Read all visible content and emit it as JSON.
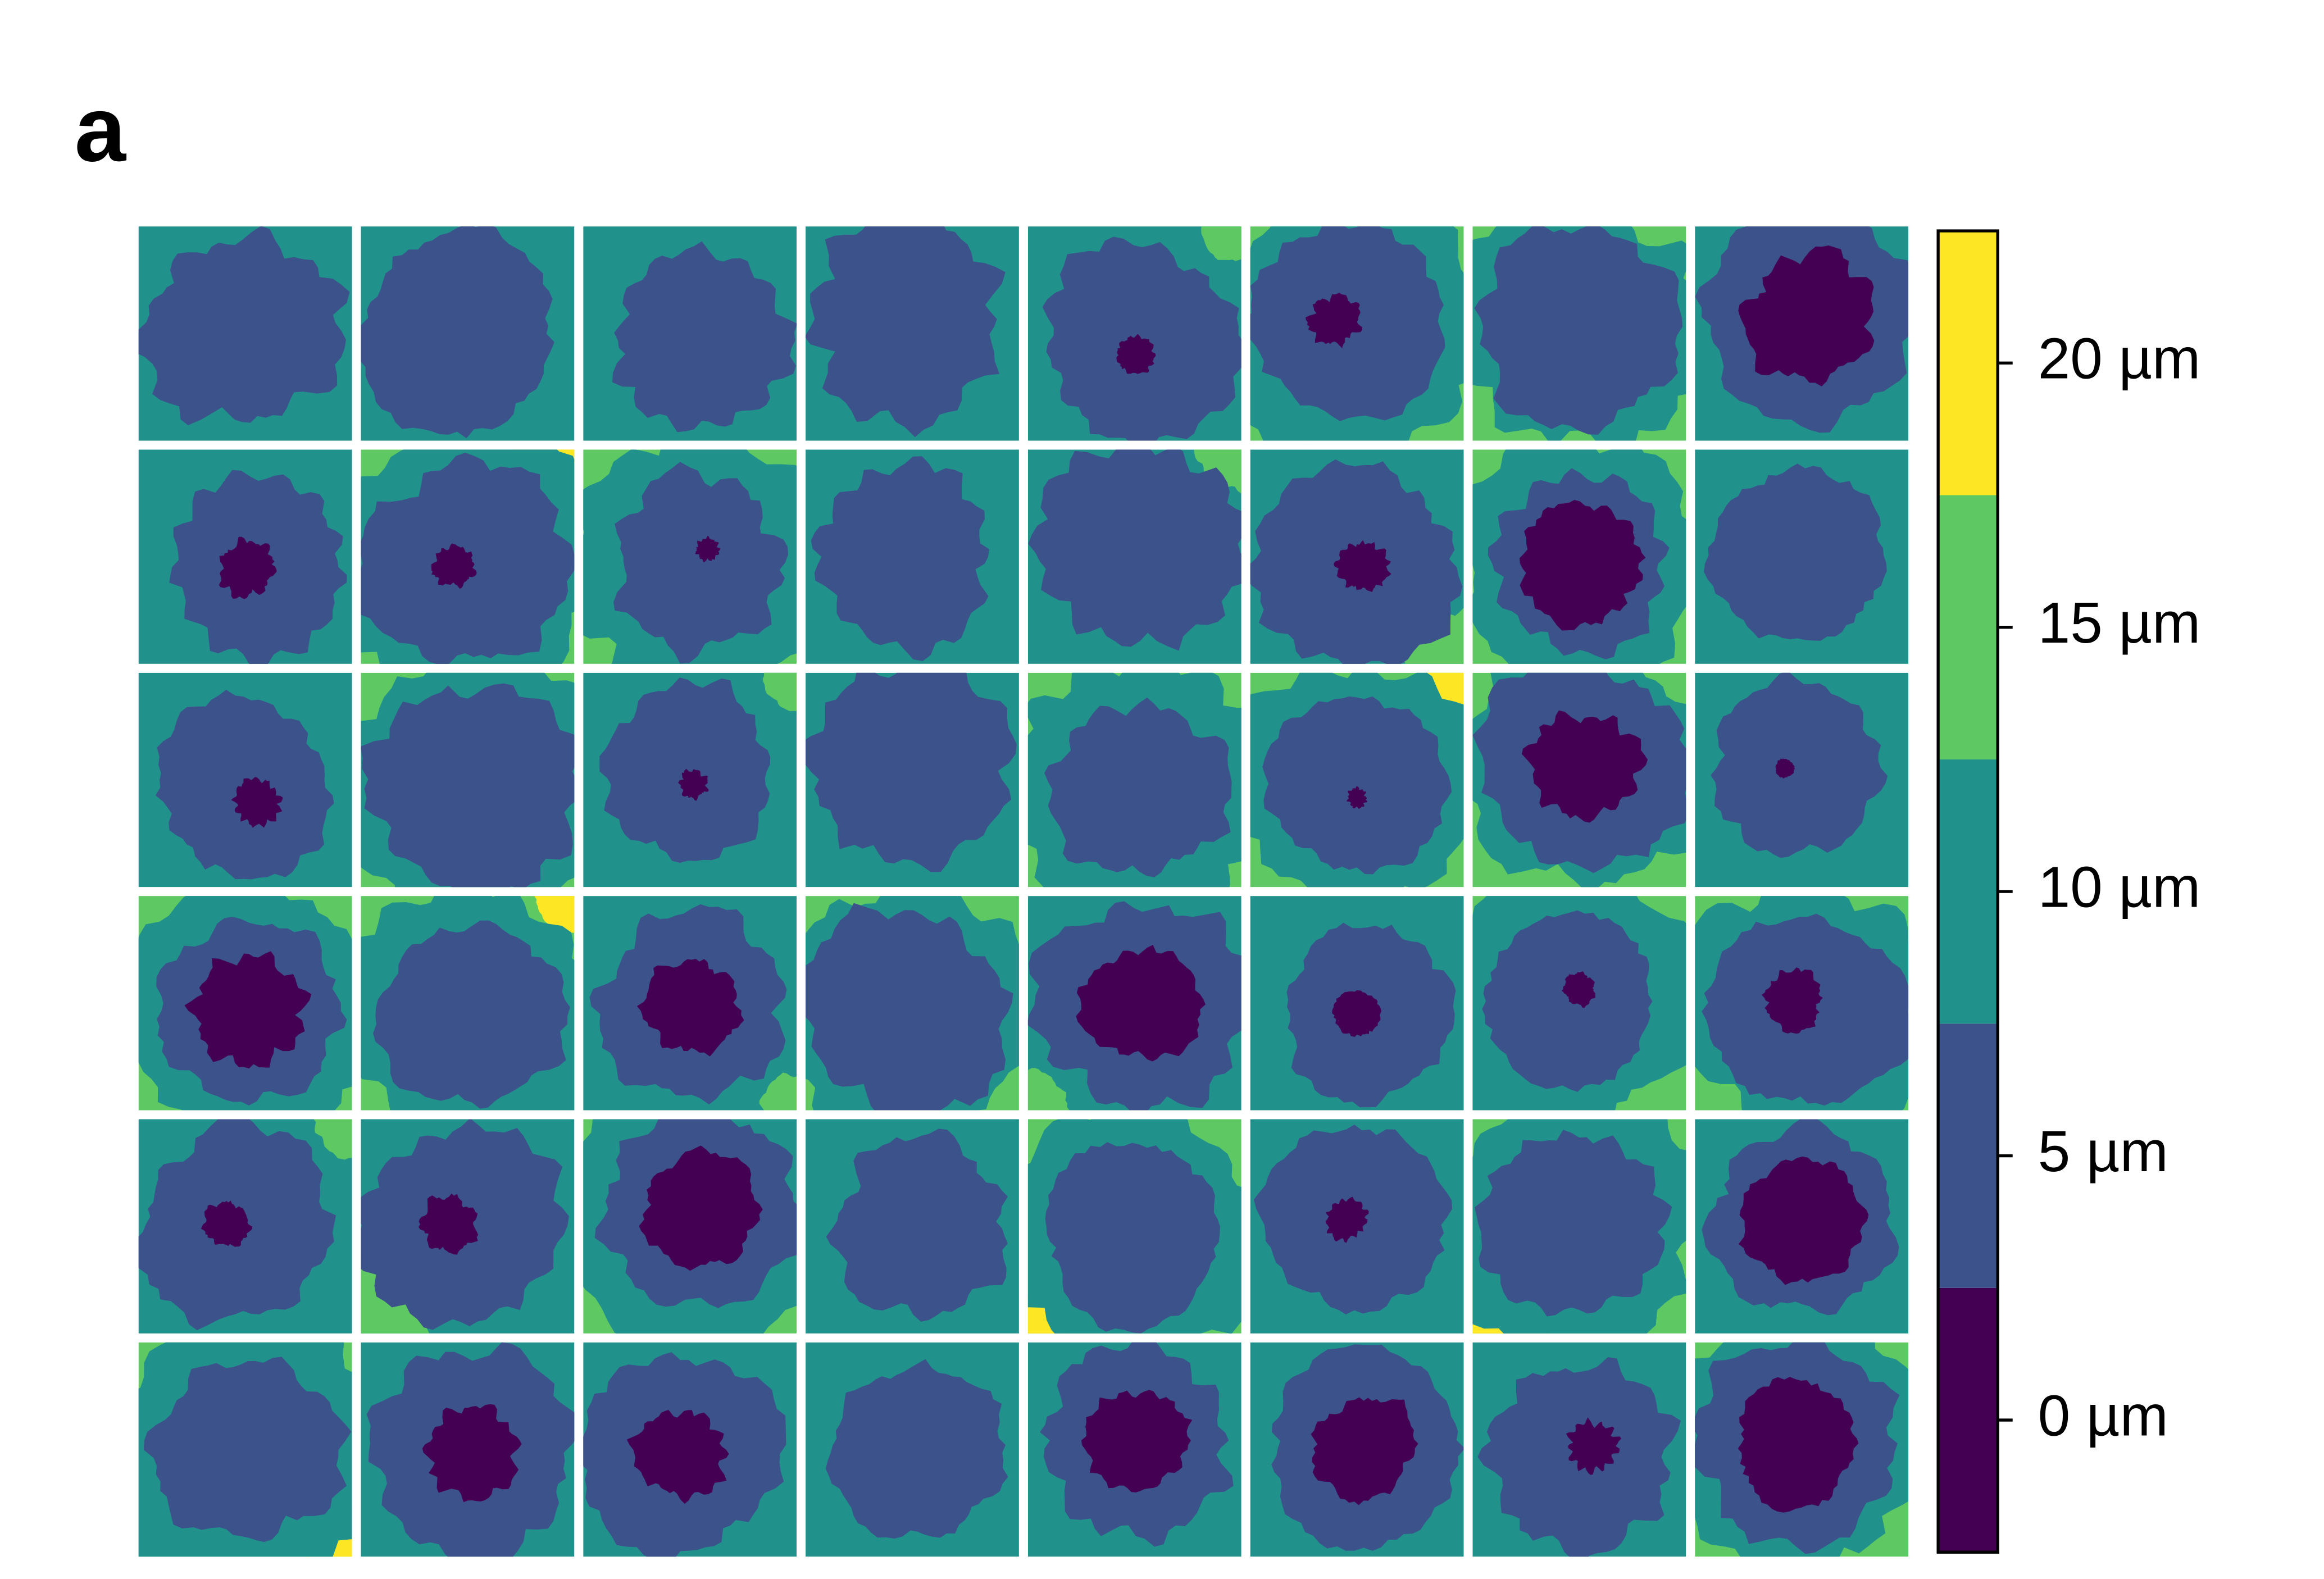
{
  "panel_label": "a",
  "chart_data": {
    "type": "contour-grid",
    "rows": 6,
    "columns": 8,
    "colorbar": {
      "ylim": [
        -2.5,
        22.5
      ],
      "bounds": [
        -2.5,
        2.5,
        7.5,
        12.5,
        17.5,
        22.5
      ],
      "colors": [
        "#440154",
        "#3b528b",
        "#21918c",
        "#5ec962",
        "#fde725"
      ],
      "yticks": [
        {
          "value": 0,
          "label": "0 µm"
        },
        {
          "value": 5,
          "label": "5 µm"
        },
        {
          "value": 10,
          "label": "10 µm"
        },
        {
          "value": 15,
          "label": "15 µm"
        },
        {
          "value": 20,
          "label": "20 µm"
        }
      ]
    }
  }
}
